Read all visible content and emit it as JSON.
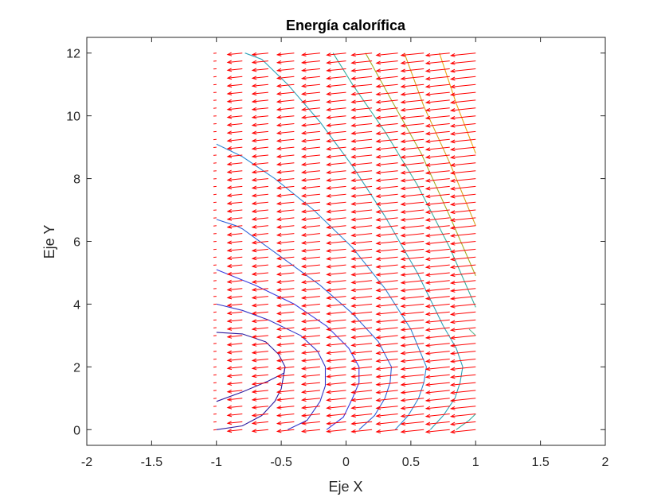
{
  "chart_data": {
    "type": "quiver-contour",
    "title": "Energía calorífica",
    "xlabel": "Eje X",
    "ylabel": "Eje Y",
    "xlim": [
      -2,
      2
    ],
    "ylim": [
      -0.5,
      12.5
    ],
    "xticks": [
      "-2",
      "-1.5",
      "-1",
      "-0.5",
      "0",
      "0.5",
      "1",
      "1.5",
      "2"
    ],
    "xtick_values": [
      -2,
      -1.5,
      -1,
      -0.5,
      0,
      0.5,
      1,
      1.5,
      2
    ],
    "yticks": [
      "0",
      "2",
      "4",
      "6",
      "8",
      "10",
      "12"
    ],
    "ytick_values": [
      0,
      2,
      4,
      6,
      8,
      10,
      12
    ],
    "grid": false,
    "box": true,
    "quiver": {
      "color": "#ff0000",
      "x_range": [
        -1,
        1
      ],
      "y_range": [
        0,
        12
      ],
      "columns": 11,
      "rows": 49
    },
    "contours": [
      {
        "color": "#2e1a9e",
        "points": [
          [
            -1,
            0.0
          ],
          [
            -0.8,
            0.12
          ],
          [
            -0.65,
            0.45
          ],
          [
            -0.55,
            0.9
          ],
          [
            -0.5,
            1.3
          ],
          [
            -0.47,
            2.0
          ],
          [
            -0.52,
            2.4
          ],
          [
            -0.62,
            2.8
          ],
          [
            -0.8,
            3.05
          ],
          [
            -1,
            3.1
          ]
        ]
      },
      {
        "color": "#2e1a9e",
        "points": [
          [
            -1,
            0.9
          ],
          [
            -0.8,
            1.2
          ],
          [
            -0.6,
            1.55
          ],
          [
            -0.48,
            1.8
          ],
          [
            -0.47,
            2.0
          ]
        ]
      },
      {
        "color": "#3434c8",
        "points": [
          [
            -0.45,
            0.0
          ],
          [
            -0.3,
            0.3
          ],
          [
            -0.2,
            0.9
          ],
          [
            -0.16,
            1.4
          ],
          [
            -0.16,
            2.0
          ],
          [
            -0.22,
            2.5
          ],
          [
            -0.35,
            3.0
          ],
          [
            -0.6,
            3.5
          ],
          [
            -0.8,
            3.8
          ],
          [
            -1,
            4.0
          ]
        ]
      },
      {
        "color": "#3a3ae0",
        "points": [
          [
            -0.15,
            0.0
          ],
          [
            -0.02,
            0.4
          ],
          [
            0.05,
            1.0
          ],
          [
            0.1,
            1.5
          ],
          [
            0.1,
            2.0
          ],
          [
            0.02,
            2.6
          ],
          [
            -0.15,
            3.3
          ],
          [
            -0.4,
            4.0
          ],
          [
            -0.7,
            4.6
          ],
          [
            -1,
            5.1
          ]
        ]
      },
      {
        "color": "#2f5fd8",
        "points": [
          [
            0.1,
            0.0
          ],
          [
            0.22,
            0.45
          ],
          [
            0.3,
            1.0
          ],
          [
            0.34,
            1.5
          ],
          [
            0.35,
            2.0
          ],
          [
            0.25,
            2.8
          ],
          [
            0.05,
            3.7
          ],
          [
            -0.2,
            4.6
          ],
          [
            -0.5,
            5.5
          ],
          [
            -0.8,
            6.4
          ],
          [
            -0.85,
            6.5
          ],
          [
            -1,
            6.7
          ]
        ]
      },
      {
        "color": "#2f86d4",
        "points": [
          [
            0.38,
            0.0
          ],
          [
            0.48,
            0.45
          ],
          [
            0.56,
            1.0
          ],
          [
            0.6,
            1.5
          ],
          [
            0.62,
            2.0
          ],
          [
            0.5,
            3.2
          ],
          [
            0.3,
            4.5
          ],
          [
            0.05,
            5.8
          ],
          [
            -0.25,
            7.0
          ],
          [
            -0.55,
            8.0
          ],
          [
            -0.8,
            8.7
          ],
          [
            -0.85,
            8.8
          ],
          [
            -1,
            9.1
          ]
        ]
      },
      {
        "color": "#2ea3b8",
        "points": [
          [
            0.65,
            0.0
          ],
          [
            0.75,
            0.45
          ],
          [
            0.84,
            1.0
          ],
          [
            0.88,
            1.5
          ],
          [
            0.9,
            2.0
          ],
          [
            0.85,
            2.6
          ],
          [
            0.75,
            3.3
          ]
        ]
      },
      {
        "color": "#2ea3b8",
        "points": [
          [
            0.75,
            3.3
          ],
          [
            0.55,
            5.0
          ],
          [
            0.3,
            6.8
          ],
          [
            0.05,
            8.4
          ],
          [
            -0.2,
            9.8
          ],
          [
            -0.45,
            11.0
          ],
          [
            -0.65,
            11.8
          ],
          [
            -0.78,
            12.0
          ]
        ]
      },
      {
        "color": "#39b0a0",
        "points": [
          [
            0.85,
            0.0
          ],
          [
            0.95,
            0.3
          ],
          [
            1.0,
            0.5
          ]
        ]
      },
      {
        "color": "#39b0a0",
        "points": [
          [
            1.0,
            3.9
          ],
          [
            0.8,
            5.8
          ],
          [
            0.55,
            7.8
          ],
          [
            0.3,
            9.5
          ],
          [
            0.05,
            11.0
          ],
          [
            -0.1,
            12.0
          ]
        ]
      },
      {
        "color": "#5ab98f",
        "points": [
          [
            1.0,
            3.0
          ],
          [
            0.95,
            3.2
          ]
        ]
      },
      {
        "color": "#a6b02a",
        "points": [
          [
            1.0,
            4.9
          ],
          [
            0.8,
            6.8
          ],
          [
            0.58,
            8.8
          ],
          [
            0.35,
            10.5
          ],
          [
            0.15,
            12.0
          ]
        ]
      },
      {
        "color": "#d8a41c",
        "points": [
          [
            1.0,
            6.5
          ],
          [
            0.8,
            8.5
          ],
          [
            0.6,
            10.3
          ],
          [
            0.45,
            12.0
          ]
        ]
      },
      {
        "color": "#eda817",
        "points": [
          [
            1.0,
            8.8
          ],
          [
            0.85,
            10.4
          ],
          [
            0.72,
            12.0
          ]
        ]
      }
    ]
  }
}
